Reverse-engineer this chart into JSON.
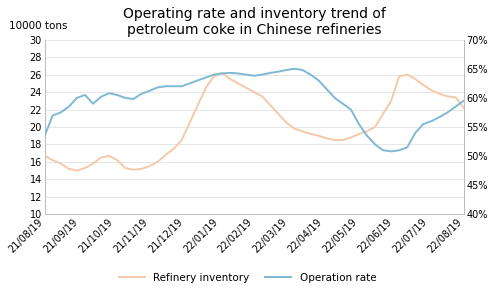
{
  "title": "Operating rate and inventory trend of\npetroleum coke in Chinese refineries",
  "ylabel_left": "10000 tons",
  "ylim_left": [
    10,
    30
  ],
  "yticks_left": [
    10,
    12,
    14,
    16,
    18,
    20,
    22,
    24,
    26,
    28,
    30
  ],
  "ylim_right": [
    0.4,
    0.7
  ],
  "yticks_right": [
    0.4,
    0.45,
    0.5,
    0.55,
    0.6,
    0.65,
    0.7
  ],
  "bg_color": "#ffffff",
  "x_labels": [
    "21/08/19",
    "21/09/19",
    "21/10/19",
    "21/11/19",
    "21/12/19",
    "22/01/19",
    "22/02/19",
    "22/03/19",
    "22/04/19",
    "22/05/19",
    "22/06/19",
    "22/07/19",
    "22/08/19"
  ],
  "inventory_y": [
    16.7,
    16.2,
    15.8,
    15.2,
    15.0,
    15.3,
    15.8,
    16.5,
    16.7,
    16.2,
    15.3,
    15.1,
    15.2,
    15.5,
    16.0,
    16.8,
    17.5,
    18.5,
    20.5,
    22.5,
    24.5,
    25.8,
    26.2,
    25.5,
    25.0,
    24.5,
    24.0,
    23.5,
    22.5,
    21.5,
    20.5,
    19.8,
    19.5,
    19.2,
    19.0,
    18.7,
    18.5,
    18.5,
    18.8,
    19.2,
    19.5,
    20.0,
    21.5,
    23.0,
    25.8,
    26.0,
    25.5,
    24.8,
    24.2,
    23.8,
    23.5,
    23.4,
    22.2
  ],
  "oprate_y": [
    0.535,
    0.57,
    0.575,
    0.585,
    0.6,
    0.605,
    0.59,
    0.602,
    0.608,
    0.605,
    0.6,
    0.598,
    0.607,
    0.612,
    0.618,
    0.62,
    0.62,
    0.62,
    0.625,
    0.63,
    0.635,
    0.64,
    0.642,
    0.643,
    0.642,
    0.64,
    0.638,
    0.64,
    0.643,
    0.645,
    0.648,
    0.65,
    0.648,
    0.64,
    0.63,
    0.615,
    0.6,
    0.59,
    0.58,
    0.555,
    0.535,
    0.52,
    0.51,
    0.508,
    0.51,
    0.515,
    0.54,
    0.555,
    0.56,
    0.567,
    0.575,
    0.585,
    0.595
  ],
  "inventory_color": "#f5c9a8",
  "oprate_color": "#7eb8d4",
  "legend_inventory": "Refinery inventory",
  "legend_oprate": "Operation rate",
  "title_fontsize": 10,
  "tick_fontsize": 7,
  "label_fontsize": 7.5
}
